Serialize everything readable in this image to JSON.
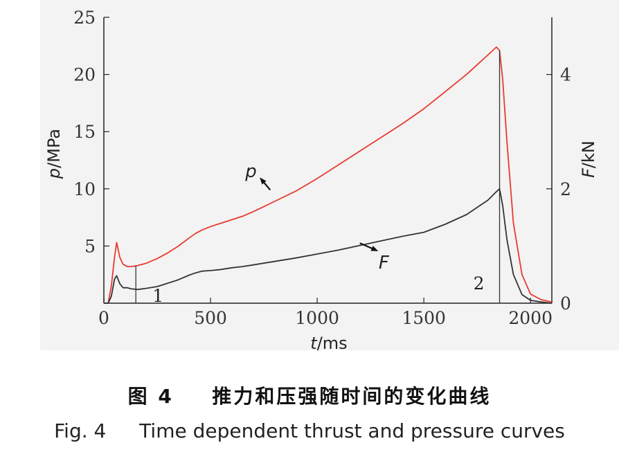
{
  "chart_data": {
    "type": "line",
    "x_axis": {
      "label_var": "t",
      "label_unit": "/ms",
      "range": [
        0,
        2100
      ],
      "ticks": [
        0,
        500,
        1000,
        1500,
        2000
      ],
      "tick_labels": [
        "0",
        "500",
        "1000",
        "1500",
        "2000"
      ]
    },
    "y_left": {
      "label_var": "p",
      "label_unit": "/MPa",
      "range": [
        0,
        25
      ],
      "ticks": [
        5,
        10,
        15,
        20,
        25
      ],
      "tick_labels": [
        "5",
        "10",
        "15",
        "20",
        "25"
      ]
    },
    "y_right": {
      "label_var": "F",
      "label_unit": "/kN",
      "range": [
        0,
        5
      ],
      "ticks": [
        0,
        2,
        4
      ],
      "tick_labels": [
        "0",
        "2",
        "4"
      ]
    },
    "series": [
      {
        "name": "p",
        "axis": "left",
        "color": "#e8392e",
        "x": [
          0,
          20,
          35,
          50,
          60,
          75,
          90,
          110,
          130,
          160,
          200,
          250,
          300,
          350,
          400,
          430,
          460,
          500,
          550,
          600,
          650,
          700,
          800,
          900,
          1000,
          1100,
          1200,
          1300,
          1400,
          1500,
          1600,
          1700,
          1800,
          1840,
          1855,
          1870,
          1890,
          1920,
          1960,
          2000,
          2050,
          2100
        ],
        "values": [
          0,
          0,
          1.5,
          4.0,
          5.3,
          4.0,
          3.4,
          3.2,
          3.2,
          3.3,
          3.5,
          3.9,
          4.4,
          5.0,
          5.7,
          6.1,
          6.4,
          6.7,
          7.0,
          7.3,
          7.6,
          8.0,
          8.9,
          9.8,
          10.9,
          12.1,
          13.3,
          14.5,
          15.7,
          17.0,
          18.5,
          20.0,
          21.7,
          22.4,
          22.1,
          19.5,
          14.0,
          7.0,
          2.5,
          0.8,
          0.3,
          0.1
        ]
      },
      {
        "name": "F",
        "axis": "right",
        "color": "#333333",
        "x": [
          0,
          20,
          35,
          50,
          60,
          75,
          90,
          110,
          130,
          160,
          200,
          250,
          300,
          350,
          400,
          430,
          460,
          500,
          550,
          600,
          650,
          700,
          800,
          900,
          1000,
          1100,
          1200,
          1300,
          1400,
          1500,
          1600,
          1700,
          1800,
          1840,
          1855,
          1870,
          1890,
          1920,
          1960,
          2000,
          2050,
          2100
        ],
        "values": [
          0,
          0,
          0.12,
          0.42,
          0.48,
          0.34,
          0.27,
          0.27,
          0.25,
          0.24,
          0.26,
          0.29,
          0.35,
          0.41,
          0.49,
          0.53,
          0.56,
          0.57,
          0.59,
          0.62,
          0.64,
          0.67,
          0.73,
          0.79,
          0.86,
          0.93,
          1.01,
          1.09,
          1.17,
          1.24,
          1.38,
          1.55,
          1.8,
          1.95,
          2.0,
          1.7,
          1.1,
          0.5,
          0.15,
          0.05,
          0.02,
          0.0
        ]
      }
    ],
    "markers": [
      {
        "label": "1",
        "x": 150
      },
      {
        "label": "2",
        "x": 1855
      }
    ],
    "annotations": [
      {
        "text": "p",
        "arrow_from": [
          780,
          9.9
        ],
        "arrow_to": [
          735,
          10.9
        ]
      },
      {
        "text": "F",
        "arrow_from": [
          1200,
          1.05
        ],
        "arrow_to": [
          1280,
          0.92
        ]
      }
    ],
    "grid": false
  },
  "caption": {
    "cn_number": "图 4",
    "cn_title": "推力和压强随时间的变化曲线",
    "en_number": "Fig. 4",
    "en_title": "Time dependent thrust and pressure curves"
  }
}
